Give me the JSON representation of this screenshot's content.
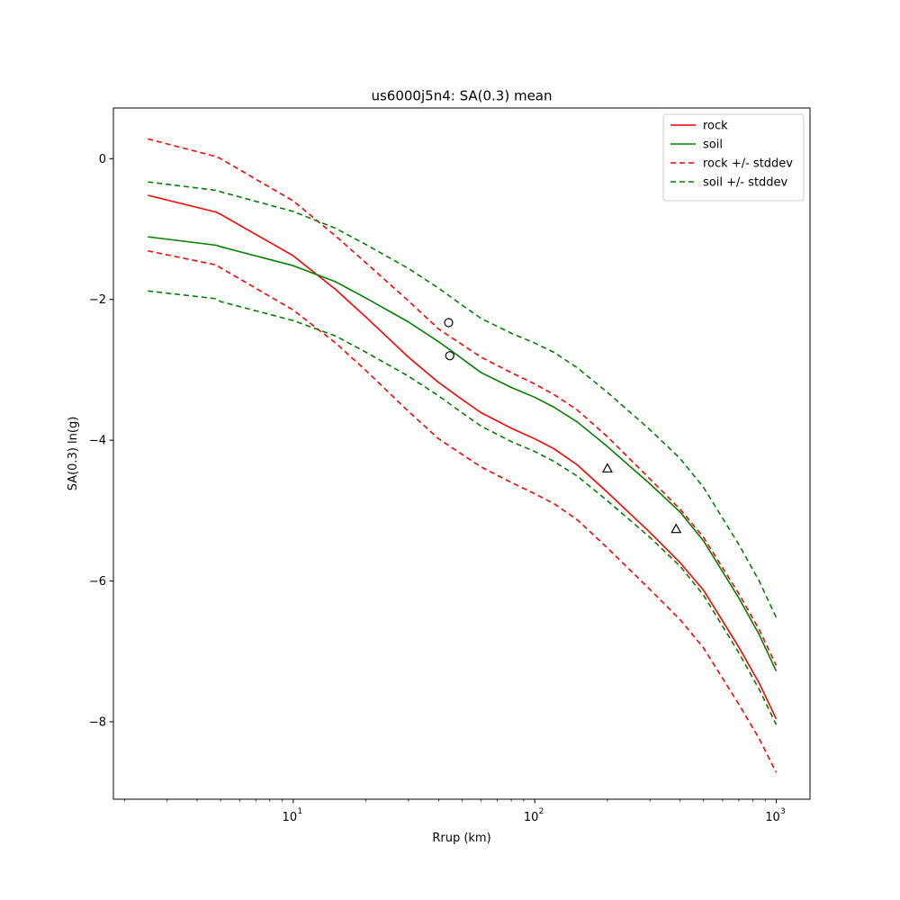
{
  "chart_data": {
    "type": "line",
    "title": "us6000j5n4: SA(0.3) mean",
    "xlabel": "Rrup (km)",
    "ylabel": "SA(0.3) ln(g)",
    "xscale": "log",
    "xlim": [
      1.8,
      1380
    ],
    "ylim": [
      -9.1,
      0.72
    ],
    "x_ticks": [
      {
        "value": 10,
        "base": "10",
        "exp": "1"
      },
      {
        "value": 100,
        "base": "10",
        "exp": "2"
      },
      {
        "value": 1000,
        "base": "10",
        "exp": "3"
      }
    ],
    "y_ticks": [
      {
        "value": 0,
        "label": "0"
      },
      {
        "value": -2,
        "label": "−2"
      },
      {
        "value": -4,
        "label": "−4"
      },
      {
        "value": -6,
        "label": "−6"
      },
      {
        "value": -8,
        "label": "−8"
      }
    ],
    "grid": false,
    "legend_position": "top-right",
    "x": [
      2.5,
      4.8,
      5,
      10,
      15,
      20,
      30,
      40,
      50,
      60,
      80,
      100,
      120,
      150,
      200,
      300,
      400,
      500,
      700,
      850,
      1000
    ],
    "series": [
      {
        "name": "rock",
        "color": "#ff0000",
        "style": "solid",
        "in_legend": true,
        "values": [
          -0.52,
          -0.76,
          -0.79,
          -1.38,
          -1.86,
          -2.25,
          -2.82,
          -3.18,
          -3.42,
          -3.61,
          -3.83,
          -3.98,
          -4.12,
          -4.35,
          -4.74,
          -5.31,
          -5.74,
          -6.13,
          -6.94,
          -7.45,
          -7.96
        ]
      },
      {
        "name": "soil",
        "color": "#008000",
        "style": "solid",
        "in_legend": true,
        "values": [
          -1.11,
          -1.23,
          -1.25,
          -1.52,
          -1.75,
          -1.98,
          -2.32,
          -2.6,
          -2.84,
          -3.04,
          -3.25,
          -3.39,
          -3.53,
          -3.74,
          -4.09,
          -4.62,
          -5.02,
          -5.43,
          -6.24,
          -6.76,
          -7.28
        ]
      },
      {
        "name": "rock +/- stddev",
        "color": "#ff0000",
        "style": "dashed",
        "in_legend": true,
        "values": [
          0.28,
          0.03,
          0.0,
          -0.6,
          -1.1,
          -1.48,
          -2.02,
          -2.42,
          -2.64,
          -2.82,
          -3.04,
          -3.2,
          -3.35,
          -3.57,
          -3.95,
          -4.55,
          -4.98,
          -5.38,
          -6.18,
          -6.69,
          -7.2
        ]
      },
      {
        "name": "",
        "color": "#ff0000",
        "style": "dashed",
        "in_legend": false,
        "values": [
          -1.31,
          -1.51,
          -1.55,
          -2.15,
          -2.62,
          -3.01,
          -3.59,
          -3.98,
          -4.2,
          -4.38,
          -4.6,
          -4.76,
          -4.9,
          -5.13,
          -5.53,
          -6.12,
          -6.55,
          -6.95,
          -7.75,
          -8.24,
          -8.72
        ]
      },
      {
        "name": "soil +/- stddev",
        "color": "#008000",
        "style": "dashed",
        "in_legend": true,
        "values": [
          -0.33,
          -0.45,
          -0.47,
          -0.75,
          -0.99,
          -1.22,
          -1.56,
          -1.84,
          -2.08,
          -2.27,
          -2.48,
          -2.62,
          -2.75,
          -2.97,
          -3.32,
          -3.85,
          -4.26,
          -4.67,
          -5.48,
          -6.0,
          -6.52
        ]
      },
      {
        "name": "",
        "color": "#008000",
        "style": "dashed",
        "in_legend": false,
        "values": [
          -1.88,
          -1.99,
          -2.03,
          -2.3,
          -2.52,
          -2.75,
          -3.09,
          -3.37,
          -3.61,
          -3.8,
          -4.02,
          -4.16,
          -4.3,
          -4.51,
          -4.86,
          -5.38,
          -5.79,
          -6.2,
          -7.02,
          -7.54,
          -8.04
        ]
      }
    ],
    "markers": [
      {
        "shape": "circle",
        "x": 44,
        "y": -2.33
      },
      {
        "shape": "circle",
        "x": 44.5,
        "y": -2.8
      },
      {
        "shape": "triangle",
        "x": 200,
        "y": -4.4
      },
      {
        "shape": "triangle",
        "x": 385,
        "y": -5.26
      }
    ]
  }
}
